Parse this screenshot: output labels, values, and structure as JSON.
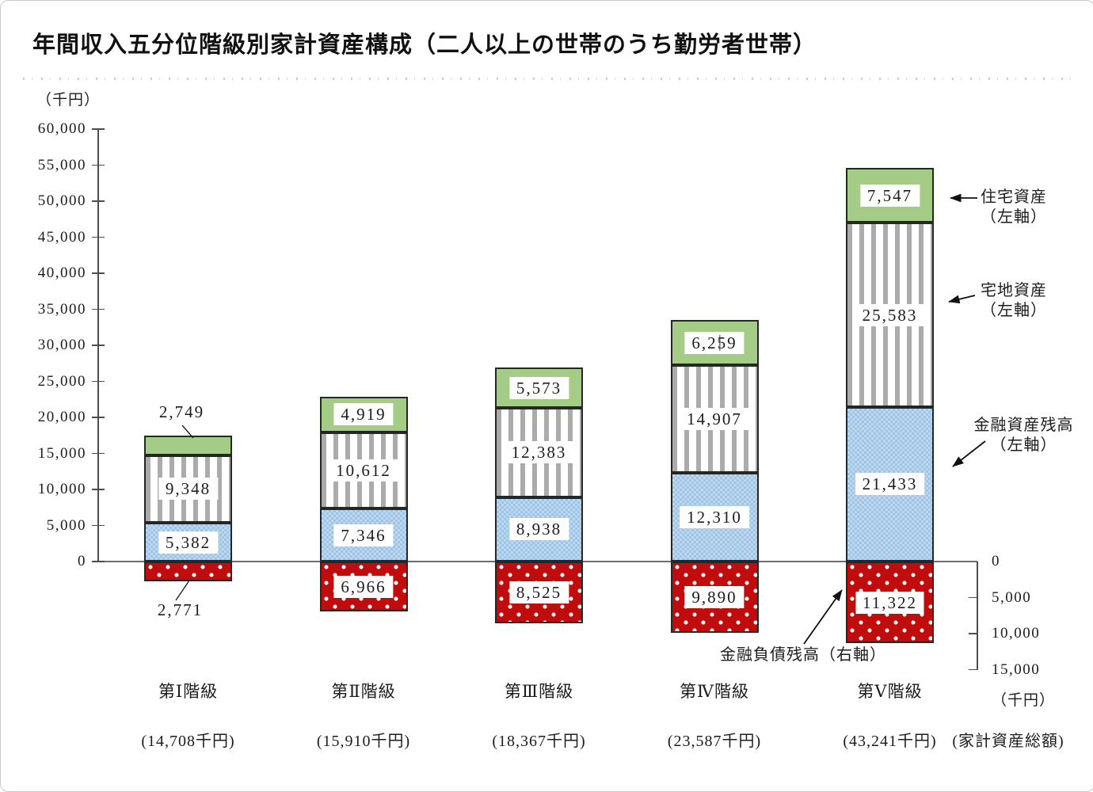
{
  "title": "年間収入五分位階級別家計資産構成（二人以上の世帯のうち勤労者世帯）",
  "left_axis": {
    "unit": "（千円）",
    "ticks": [
      {
        "value": 60000,
        "label": "60,000"
      },
      {
        "value": 55000,
        "label": "55,000"
      },
      {
        "value": 50000,
        "label": "50,000"
      },
      {
        "value": 45000,
        "label": "45,000"
      },
      {
        "value": 40000,
        "label": "40,000"
      },
      {
        "value": 35000,
        "label": "35,000"
      },
      {
        "value": 30000,
        "label": "30,000"
      },
      {
        "value": 25000,
        "label": "25,000"
      },
      {
        "value": 20000,
        "label": "20,000"
      },
      {
        "value": 15000,
        "label": "15,000"
      },
      {
        "value": 10000,
        "label": "10,000"
      },
      {
        "value": 5000,
        "label": "5,000"
      },
      {
        "value": 0,
        "label": "0"
      }
    ]
  },
  "right_axis": {
    "unit": "（千円）",
    "ticks": [
      {
        "value": 0,
        "label": "0"
      },
      {
        "value": 5000,
        "label": "5,000"
      },
      {
        "value": 10000,
        "label": "10,000"
      },
      {
        "value": 15000,
        "label": "15,000"
      }
    ]
  },
  "chart_data": {
    "type": "bar",
    "stacked": true,
    "orientation": "vertical",
    "categories": [
      "第Ⅰ階級",
      "第Ⅱ階級",
      "第Ⅲ階級",
      "第Ⅳ階級",
      "第Ⅴ階級"
    ],
    "category_totals": [
      "(14,708千円)",
      "(15,910千円)",
      "(18,367千円)",
      "(23,587千円)",
      "(43,241千円)"
    ],
    "totals_caption": "(家計資産総額)",
    "ylim_left": [
      0,
      60000
    ],
    "ylim_right_inverted": [
      0,
      15000
    ],
    "series": [
      {
        "key": "financial_assets",
        "name": "金融資産残高（左軸）",
        "axis": "left",
        "pattern": "blue-dots",
        "values": [
          5382,
          7346,
          8938,
          12310,
          21433
        ],
        "labels": [
          "5,382",
          "7,346",
          "8,938",
          "12,310",
          "21,433"
        ]
      },
      {
        "key": "land_assets",
        "name": "宅地資産（左軸）",
        "axis": "left",
        "pattern": "gray-stripes",
        "values": [
          9348,
          10612,
          12383,
          14907,
          25583
        ],
        "labels": [
          "9,348",
          "10,612",
          "12,383",
          "14,907",
          "25,583"
        ]
      },
      {
        "key": "housing_assets",
        "name": "住宅資産（左軸）",
        "axis": "left",
        "pattern": "green-solid",
        "values": [
          2749,
          4919,
          5573,
          6259,
          7547
        ],
        "labels": [
          "2,749",
          "4,919",
          "5,573",
          "6,259",
          "7,547"
        ]
      },
      {
        "key": "financial_liabilities",
        "name": "金融負債残高（右軸）",
        "axis": "right",
        "pattern": "red-dots",
        "values": [
          2771,
          6966,
          8525,
          9890,
          11322
        ],
        "labels": [
          "2,771",
          "6,966",
          "8,525",
          "9,890",
          "11,322"
        ]
      }
    ],
    "colors": {
      "green": "#A4CC86",
      "gray_stripe": "#ABABAB",
      "blue_base": "#BCD7EF",
      "blue_dot": "#9FC5E4",
      "red": "#C00C0C",
      "segment_border": "#262626"
    }
  },
  "annotations": {
    "housing": {
      "line1": "住宅資産",
      "line2": "（左軸）"
    },
    "land": {
      "line1": "宅地資産",
      "line2": "（左軸）"
    },
    "financial": {
      "line1": "金融資産残高",
      "line2": "（左軸）"
    },
    "liabilities": {
      "label": "金融負債残高（右軸）"
    }
  },
  "artifacts": {
    "text_cursor": {
      "series": "housing_assets",
      "category_index": 3
    }
  }
}
